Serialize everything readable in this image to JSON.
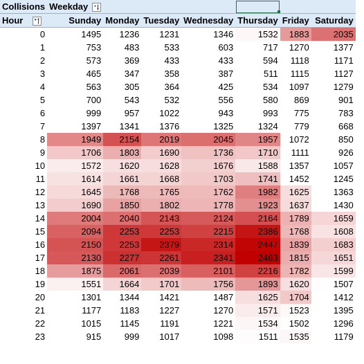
{
  "pivot": {
    "header_row1": {
      "values_label": "Collisions",
      "column_field": "Weekday"
    },
    "header_row2": {
      "row_field": "Hour"
    },
    "days": [
      "Sunday",
      "Monday",
      "Tuesday",
      "Wednesday",
      "Thursday",
      "Friday",
      "Saturday"
    ],
    "rows": [
      {
        "hour": "0",
        "values": [
          1495,
          1236,
          1231,
          1346,
          1532,
          1883,
          2035
        ]
      },
      {
        "hour": "1",
        "values": [
          753,
          483,
          533,
          603,
          717,
          1270,
          1377
        ]
      },
      {
        "hour": "2",
        "values": [
          573,
          369,
          433,
          433,
          594,
          1118,
          1171
        ]
      },
      {
        "hour": "3",
        "values": [
          465,
          347,
          358,
          387,
          511,
          1115,
          1127
        ]
      },
      {
        "hour": "4",
        "values": [
          563,
          305,
          364,
          425,
          534,
          1097,
          1279
        ]
      },
      {
        "hour": "5",
        "values": [
          700,
          543,
          532,
          556,
          580,
          869,
          901
        ]
      },
      {
        "hour": "6",
        "values": [
          999,
          957,
          1022,
          943,
          993,
          775,
          783
        ]
      },
      {
        "hour": "7",
        "values": [
          1397,
          1341,
          1376,
          1325,
          1324,
          779,
          668
        ]
      },
      {
        "hour": "8",
        "values": [
          1949,
          2154,
          2019,
          2045,
          1957,
          1072,
          850
        ]
      },
      {
        "hour": "9",
        "values": [
          1706,
          1803,
          1690,
          1736,
          1710,
          1111,
          926
        ]
      },
      {
        "hour": "10",
        "values": [
          1572,
          1620,
          1628,
          1676,
          1588,
          1357,
          1057
        ]
      },
      {
        "hour": "11",
        "values": [
          1614,
          1661,
          1668,
          1703,
          1741,
          1452,
          1245
        ]
      },
      {
        "hour": "12",
        "values": [
          1645,
          1768,
          1765,
          1762,
          1982,
          1625,
          1363
        ]
      },
      {
        "hour": "13",
        "values": [
          1690,
          1850,
          1802,
          1778,
          1923,
          1637,
          1430
        ]
      },
      {
        "hour": "14",
        "values": [
          2004,
          2040,
          2143,
          2124,
          2164,
          1789,
          1659
        ]
      },
      {
        "hour": "15",
        "values": [
          2094,
          2253,
          2253,
          2215,
          2386,
          1768,
          1608
        ]
      },
      {
        "hour": "16",
        "values": [
          2150,
          2253,
          2379,
          2314,
          2447,
          1839,
          1683
        ]
      },
      {
        "hour": "17",
        "values": [
          2130,
          2277,
          2261,
          2341,
          2463,
          1815,
          1651
        ]
      },
      {
        "hour": "18",
        "values": [
          1875,
          2061,
          2039,
          2101,
          2216,
          1782,
          1599
        ]
      },
      {
        "hour": "19",
        "values": [
          1551,
          1664,
          1701,
          1756,
          1893,
          1620,
          1507
        ]
      },
      {
        "hour": "20",
        "values": [
          1301,
          1344,
          1421,
          1487,
          1625,
          1704,
          1412
        ]
      },
      {
        "hour": "21",
        "values": [
          1177,
          1183,
          1227,
          1270,
          1571,
          1523,
          1395
        ]
      },
      {
        "hour": "22",
        "values": [
          1015,
          1145,
          1191,
          1221,
          1534,
          1502,
          1296
        ]
      },
      {
        "hour": "23",
        "values": [
          915,
          999,
          1017,
          1098,
          1511,
          1535,
          1179
        ]
      }
    ]
  },
  "conditional_format": {
    "low_color": "#ffffff",
    "high_color": "#c00000",
    "threshold": 1500,
    "max": 2463
  },
  "icons": {
    "column_filter": "sort-filter-icon",
    "row_filter": "sort-filter-icon"
  }
}
